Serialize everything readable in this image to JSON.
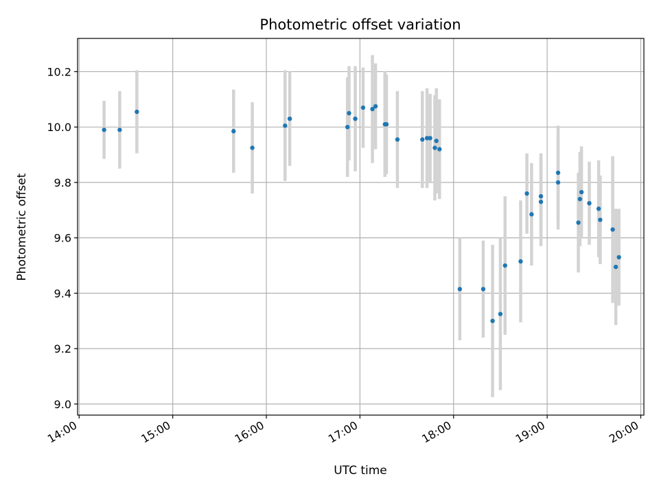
{
  "chart_data": {
    "type": "scatter",
    "title": "Photometric offset variation",
    "xlabel": "UTC time",
    "ylabel": "Photometric offset",
    "x_ticks": [
      "14:00",
      "15:00",
      "16:00",
      "17:00",
      "18:00",
      "19:00",
      "20:00"
    ],
    "y_ticks": [
      "9.0",
      "9.2",
      "9.4",
      "9.6",
      "9.8",
      "10.0",
      "10.2"
    ],
    "xlim": [
      "13:59",
      "20:02"
    ],
    "ylim": [
      8.96,
      10.32
    ],
    "grid": true,
    "colors": {
      "point": "#1f77b4",
      "errorbar": "#d3d3d3",
      "grid": "#b0b0b0"
    },
    "series": [
      {
        "points": [
          {
            "x": "14:16",
            "y": 9.99,
            "yerr": 0.105
          },
          {
            "x": "14:26",
            "y": 9.99,
            "yerr": 0.14
          },
          {
            "x": "14:37",
            "y": 10.055,
            "yerr": 0.15
          },
          {
            "x": "15:39",
            "y": 9.985,
            "yerr": 0.15
          },
          {
            "x": "15:51",
            "y": 9.925,
            "yerr": 0.165
          },
          {
            "x": "16:12",
            "y": 10.005,
            "yerr": 0.2
          },
          {
            "x": "16:15",
            "y": 10.03,
            "yerr": 0.17
          },
          {
            "x": "16:52",
            "y": 10.0,
            "yerr": 0.18
          },
          {
            "x": "16:53",
            "y": 10.05,
            "yerr": 0.17
          },
          {
            "x": "16:57",
            "y": 10.03,
            "yerr": 0.19
          },
          {
            "x": "17:02",
            "y": 10.07,
            "yerr": 0.145
          },
          {
            "x": "17:08",
            "y": 10.065,
            "yerr": 0.195
          },
          {
            "x": "17:10",
            "y": 10.075,
            "yerr": 0.155
          },
          {
            "x": "17:16",
            "y": 10.01,
            "yerr": 0.19
          },
          {
            "x": "17:17",
            "y": 10.01,
            "yerr": 0.18
          },
          {
            "x": "17:24",
            "y": 9.955,
            "yerr": 0.175
          },
          {
            "x": "17:40",
            "y": 9.955,
            "yerr": 0.175
          },
          {
            "x": "17:43",
            "y": 9.96,
            "yerr": 0.18
          },
          {
            "x": "17:45",
            "y": 9.96,
            "yerr": 0.16
          },
          {
            "x": "17:48",
            "y": 9.925,
            "yerr": 0.19
          },
          {
            "x": "17:49",
            "y": 9.95,
            "yerr": 0.19
          },
          {
            "x": "17:51",
            "y": 9.92,
            "yerr": 0.18
          },
          {
            "x": "18:04",
            "y": 9.415,
            "yerr": 0.185
          },
          {
            "x": "18:19",
            "y": 9.415,
            "yerr": 0.175
          },
          {
            "x": "18:25",
            "y": 9.3,
            "yerr": 0.275
          },
          {
            "x": "18:30",
            "y": 9.325,
            "yerr": 0.275
          },
          {
            "x": "18:33",
            "y": 9.5,
            "yerr": 0.25
          },
          {
            "x": "18:43",
            "y": 9.515,
            "yerr": 0.22
          },
          {
            "x": "18:47",
            "y": 9.76,
            "yerr": 0.145
          },
          {
            "x": "18:50",
            "y": 9.685,
            "yerr": 0.185
          },
          {
            "x": "18:56",
            "y": 9.75,
            "yerr": 0.155
          },
          {
            "x": "18:56",
            "y": 9.73,
            "yerr": 0.16
          },
          {
            "x": "19:07",
            "y": 9.835,
            "yerr": 0.17
          },
          {
            "x": "19:07",
            "y": 9.8,
            "yerr": 0.17
          },
          {
            "x": "19:20",
            "y": 9.655,
            "yerr": 0.18
          },
          {
            "x": "19:21",
            "y": 9.74,
            "yerr": 0.17
          },
          {
            "x": "19:22",
            "y": 9.765,
            "yerr": 0.165
          },
          {
            "x": "19:27",
            "y": 9.725,
            "yerr": 0.15
          },
          {
            "x": "19:33",
            "y": 9.705,
            "yerr": 0.175
          },
          {
            "x": "19:34",
            "y": 9.665,
            "yerr": 0.16
          },
          {
            "x": "19:42",
            "y": 9.63,
            "yerr": 0.265
          },
          {
            "x": "19:44",
            "y": 9.495,
            "yerr": 0.21
          },
          {
            "x": "19:46",
            "y": 9.53,
            "yerr": 0.175
          }
        ]
      }
    ]
  }
}
